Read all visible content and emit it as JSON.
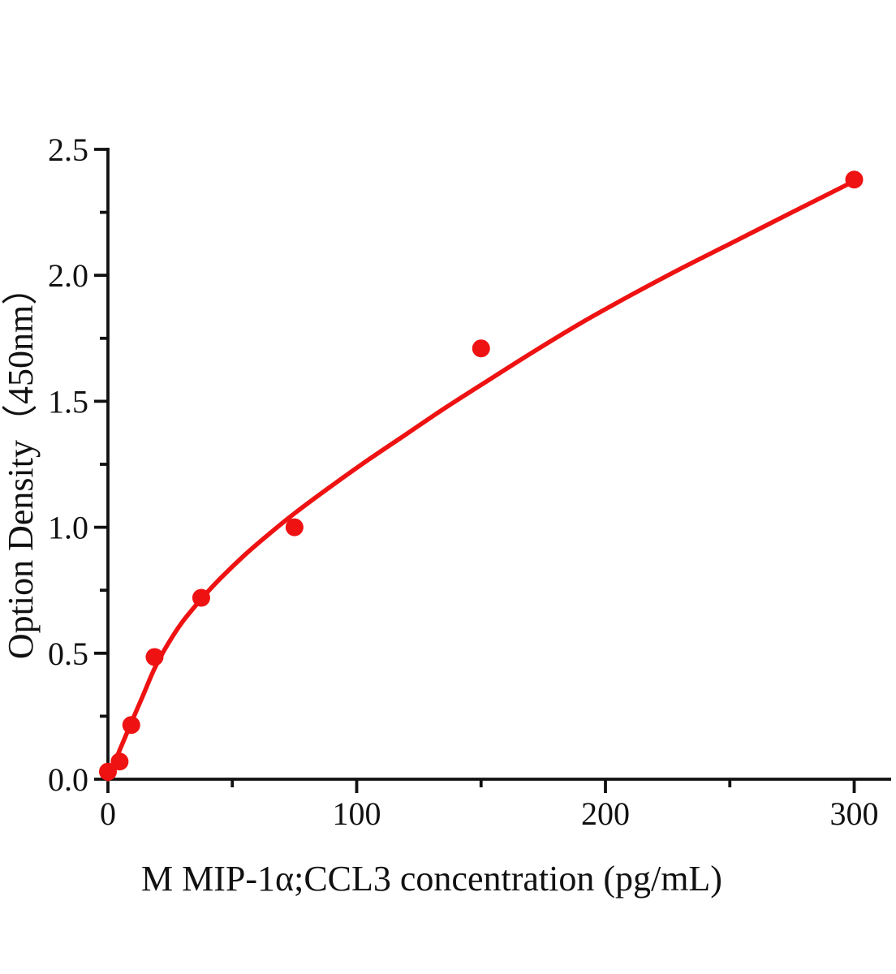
{
  "figure": {
    "background": "#ffffff",
    "text_color": "#111111",
    "accent_color": "#ee1212"
  },
  "chart_data": {
    "type": "scatter",
    "title": "",
    "xlabel": "M MIP-1α;CCL3 concentration (pg/mL)",
    "ylabel": "Option Density（450nm）",
    "xlim": [
      0,
      315
    ],
    "ylim": [
      0,
      2.5
    ],
    "grid": false,
    "legend": false,
    "x_major_ticks": [
      0,
      100,
      200,
      300
    ],
    "x_tick_labels": [
      "0",
      "100",
      "200",
      "300"
    ],
    "x_minor_ticks": [
      50,
      150,
      250
    ],
    "y_major_ticks": [
      0,
      0.5,
      1,
      1.5,
      2,
      2.5
    ],
    "y_tick_labels": [
      "0.0",
      "0.5",
      "1.0",
      "1.5",
      "2.0",
      "2.5"
    ],
    "y_minor_ticks": [
      0.25,
      0.75,
      1.25,
      1.75,
      2.25
    ],
    "series": [
      {
        "name": "standard-points",
        "type": "scatter",
        "color": "#ee1212",
        "points": [
          [
            0,
            0.03
          ],
          [
            4.69,
            0.07
          ],
          [
            9.38,
            0.215
          ],
          [
            18.75,
            0.485
          ],
          [
            37.5,
            0.72
          ],
          [
            75,
            1.0
          ],
          [
            150,
            1.71
          ],
          [
            300,
            2.38
          ]
        ]
      },
      {
        "name": "fitted-curve",
        "type": "line",
        "color": "#ee1212",
        "points": [
          [
            0,
            0
          ],
          [
            4.7,
            0.115
          ],
          [
            9.4,
            0.225
          ],
          [
            14,
            0.33
          ],
          [
            18.75,
            0.44
          ],
          [
            24,
            0.535
          ],
          [
            30,
            0.625
          ],
          [
            37.5,
            0.715
          ],
          [
            45,
            0.795
          ],
          [
            55,
            0.89
          ],
          [
            65,
            0.975
          ],
          [
            75,
            1.055
          ],
          [
            90,
            1.165
          ],
          [
            105,
            1.27
          ],
          [
            120,
            1.37
          ],
          [
            135,
            1.47
          ],
          [
            150,
            1.565
          ],
          [
            170,
            1.69
          ],
          [
            190,
            1.81
          ],
          [
            210,
            1.92
          ],
          [
            230,
            2.025
          ],
          [
            250,
            2.125
          ],
          [
            275,
            2.25
          ],
          [
            300,
            2.374
          ]
        ]
      }
    ]
  }
}
